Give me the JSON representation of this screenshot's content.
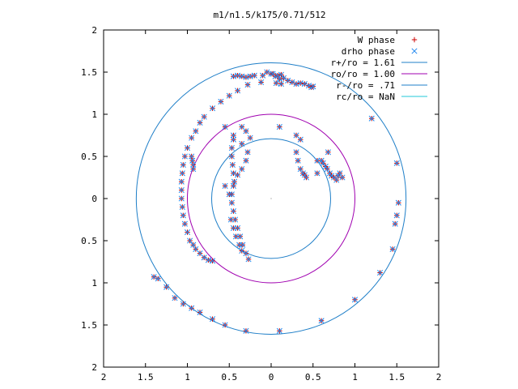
{
  "chart_data": {
    "type": "scatter",
    "title": "m1/n1.5/k175/0.71/512",
    "xlim": [
      -2,
      2
    ],
    "ylim": [
      -2,
      2
    ],
    "x_ticks": [
      -2,
      -1.5,
      -1,
      -0.5,
      0,
      0.5,
      1,
      1.5,
      2
    ],
    "y_ticks": [
      -2,
      -1.5,
      -1,
      -0.5,
      0,
      0.5,
      1,
      1.5,
      2
    ],
    "x_tick_labels": [
      "2",
      "1.5",
      "1",
      "0.5",
      "0",
      "0.5",
      "1",
      "1.5",
      "2"
    ],
    "y_tick_labels": [
      "2",
      "1.5",
      "1",
      "0.5",
      "0",
      "0.5",
      "1",
      "1.5",
      "2"
    ],
    "grid": false,
    "legend_position": "top-right",
    "legend": [
      {
        "label": "W phase",
        "marker": "plus",
        "color": "#cc0000"
      },
      {
        "label": "drho phase",
        "marker": "cross",
        "color": "#2288ee"
      },
      {
        "label": "r+/ro = 1.61",
        "marker": "line",
        "color": "#1f7fc8",
        "radius": 1.61
      },
      {
        "label": "ro/ro = 1.00",
        "marker": "line",
        "color": "#a000b0",
        "radius": 1.0
      },
      {
        "label": "r-/ro = .71",
        "marker": "line",
        "color": "#1f7fc8",
        "radius": 0.71
      },
      {
        "label": "rc/ro = NaN",
        "marker": "line",
        "color": "#22c8d8",
        "radius": null
      }
    ],
    "points": [
      [
        -0.45,
        1.45
      ],
      [
        -0.4,
        1.46
      ],
      [
        -0.35,
        1.45
      ],
      [
        -0.3,
        1.44
      ],
      [
        -0.25,
        1.45
      ],
      [
        -0.2,
        1.46
      ],
      [
        -0.1,
        1.46
      ],
      [
        -0.05,
        1.5
      ],
      [
        0.0,
        1.48
      ],
      [
        0.05,
        1.45
      ],
      [
        0.1,
        1.42
      ],
      [
        0.15,
        1.43
      ],
      [
        0.2,
        1.4
      ],
      [
        0.25,
        1.38
      ],
      [
        0.3,
        1.36
      ],
      [
        0.35,
        1.37
      ],
      [
        0.4,
        1.36
      ],
      [
        0.45,
        1.34
      ],
      [
        0.48,
        1.32
      ],
      [
        0.5,
        1.33
      ],
      [
        0.02,
        1.48
      ],
      [
        0.08,
        1.46
      ],
      [
        0.12,
        1.47
      ],
      [
        -0.28,
        1.35
      ],
      [
        -0.12,
        1.38
      ],
      [
        0.06,
        1.37
      ],
      [
        0.12,
        1.36
      ],
      [
        -0.4,
        1.28
      ],
      [
        -0.5,
        1.22
      ],
      [
        -0.6,
        1.15
      ],
      [
        -0.7,
        1.07
      ],
      [
        -0.8,
        0.97
      ],
      [
        -0.85,
        0.9
      ],
      [
        -0.9,
        0.8
      ],
      [
        -0.95,
        0.72
      ],
      [
        -1.0,
        0.6
      ],
      [
        -1.03,
        0.5
      ],
      [
        -1.05,
        0.4
      ],
      [
        -1.06,
        0.3
      ],
      [
        -1.07,
        0.2
      ],
      [
        -1.07,
        0.1
      ],
      [
        -1.07,
        0.0
      ],
      [
        -1.06,
        -0.1
      ],
      [
        -1.05,
        -0.2
      ],
      [
        -1.03,
        -0.3
      ],
      [
        -1.0,
        -0.4
      ],
      [
        -0.97,
        -0.5
      ],
      [
        -0.93,
        -0.55
      ],
      [
        -0.9,
        -0.6
      ],
      [
        -0.85,
        -0.65
      ],
      [
        -0.8,
        -0.7
      ],
      [
        -0.75,
        -0.73
      ],
      [
        -0.7,
        -0.74
      ],
      [
        -0.95,
        0.5
      ],
      [
        -0.94,
        0.45
      ],
      [
        -0.93,
        0.4
      ],
      [
        -0.93,
        0.35
      ],
      [
        -0.55,
        0.85
      ],
      [
        -0.45,
        0.75
      ],
      [
        -0.35,
        0.65
      ],
      [
        -0.28,
        0.55
      ],
      [
        -0.3,
        0.45
      ],
      [
        -0.35,
        0.35
      ],
      [
        -0.4,
        0.28
      ],
      [
        -0.45,
        0.15
      ],
      [
        -0.47,
        0.05
      ],
      [
        -0.47,
        -0.05
      ],
      [
        -0.45,
        -0.15
      ],
      [
        -0.43,
        -0.25
      ],
      [
        -0.4,
        -0.35
      ],
      [
        -0.37,
        -0.45
      ],
      [
        -0.34,
        -0.55
      ],
      [
        -0.3,
        -0.65
      ],
      [
        -0.27,
        -0.72
      ],
      [
        -0.45,
        0.7
      ],
      [
        -0.47,
        0.6
      ],
      [
        -0.47,
        0.5
      ],
      [
        -0.46,
        0.4
      ],
      [
        -0.45,
        0.3
      ],
      [
        -0.44,
        0.2
      ],
      [
        -0.35,
        0.85
      ],
      [
        -0.3,
        0.8
      ],
      [
        -0.25,
        0.72
      ],
      [
        -0.55,
        0.15
      ],
      [
        -0.5,
        0.05
      ],
      [
        -0.48,
        -0.25
      ],
      [
        -0.45,
        -0.35
      ],
      [
        -0.42,
        -0.45
      ],
      [
        -0.38,
        -0.55
      ],
      [
        -0.35,
        -0.62
      ],
      [
        0.1,
        0.85
      ],
      [
        0.3,
        0.75
      ],
      [
        0.35,
        0.7
      ],
      [
        0.3,
        0.55
      ],
      [
        0.32,
        0.45
      ],
      [
        0.35,
        0.35
      ],
      [
        0.38,
        0.3
      ],
      [
        0.4,
        0.28
      ],
      [
        0.42,
        0.25
      ],
      [
        0.6,
        0.45
      ],
      [
        0.62,
        0.42
      ],
      [
        0.65,
        0.38
      ],
      [
        0.67,
        0.35
      ],
      [
        0.7,
        0.3
      ],
      [
        0.72,
        0.27
      ],
      [
        0.75,
        0.25
      ],
      [
        0.78,
        0.22
      ],
      [
        0.8,
        0.27
      ],
      [
        0.82,
        0.3
      ],
      [
        0.85,
        0.25
      ],
      [
        0.68,
        0.55
      ],
      [
        0.55,
        0.45
      ],
      [
        0.55,
        0.3
      ],
      [
        1.2,
        0.95
      ],
      [
        1.5,
        0.42
      ],
      [
        1.52,
        -0.05
      ],
      [
        1.5,
        -0.2
      ],
      [
        1.48,
        -0.3
      ],
      [
        1.45,
        -0.6
      ],
      [
        1.3,
        -0.88
      ],
      [
        1.0,
        -1.2
      ],
      [
        0.6,
        -1.45
      ],
      [
        0.1,
        -1.57
      ],
      [
        -0.3,
        -1.57
      ],
      [
        -0.55,
        -1.5
      ],
      [
        -0.7,
        -1.43
      ],
      [
        -0.85,
        -1.35
      ],
      [
        -0.95,
        -1.3
      ],
      [
        -1.05,
        -1.25
      ],
      [
        -1.15,
        -1.18
      ],
      [
        -1.25,
        -1.05
      ],
      [
        -1.35,
        -0.95
      ],
      [
        -1.4,
        -0.93
      ]
    ]
  }
}
